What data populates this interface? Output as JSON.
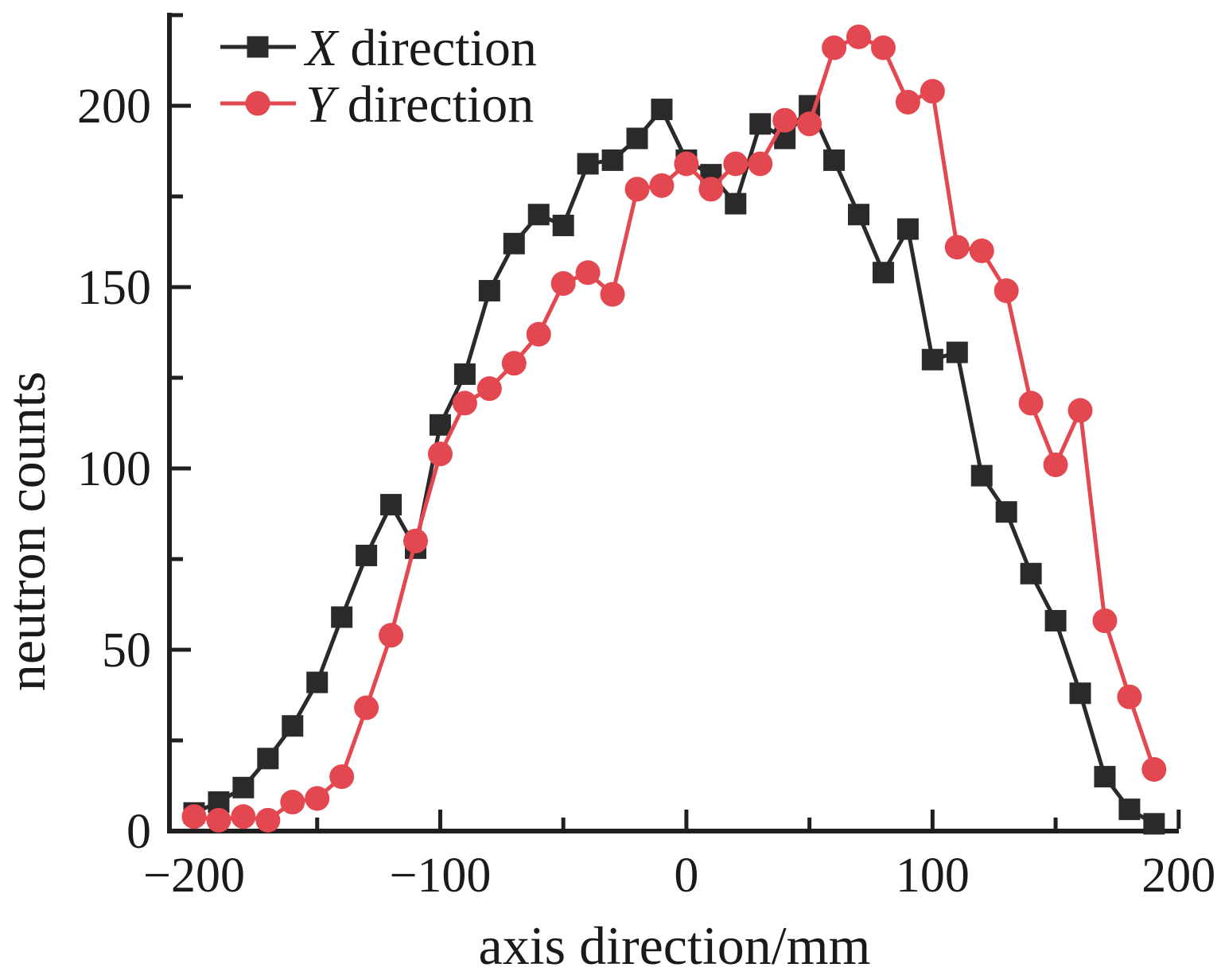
{
  "chart_data": {
    "type": "line",
    "title": "",
    "xlabel": "axis direction/mm",
    "ylabel": "neutron counts",
    "grid": false,
    "legend_position": "top-left-inside",
    "axis": {
      "xlim": [
        -210,
        200
      ],
      "ylim": [
        0,
        225
      ],
      "x_major_ticks": [
        -200,
        -100,
        0,
        100,
        200
      ],
      "x_major_tick_labels": [
        "−200",
        "−100",
        "0",
        "100",
        "200"
      ],
      "x_minor_ticks": [
        -150,
        -50,
        50,
        150
      ],
      "y_major_ticks": [
        0,
        50,
        100,
        150,
        200
      ],
      "y_major_tick_labels": [
        "0",
        "50",
        "100",
        "150",
        "200"
      ],
      "y_minor_ticks": [
        25,
        75,
        125,
        175,
        225
      ],
      "tick_direction": "in"
    },
    "x": [
      -200,
      -190,
      -180,
      -170,
      -160,
      -150,
      -140,
      -130,
      -120,
      -110,
      -100,
      -90,
      -80,
      -70,
      -60,
      -50,
      -40,
      -30,
      -20,
      -10,
      0,
      10,
      20,
      30,
      40,
      50,
      60,
      70,
      80,
      90,
      100,
      110,
      120,
      130,
      140,
      150,
      160,
      170,
      180,
      190
    ],
    "series": [
      {
        "name": "X direction",
        "legend_italic_part": "X",
        "legend_rest_part": "direction",
        "color": "#2a2a2a",
        "marker": "square",
        "values": [
          5,
          8,
          12,
          20,
          29,
          41,
          59,
          76,
          90,
          78,
          112,
          126,
          149,
          162,
          170,
          167,
          184,
          185,
          191,
          199,
          185,
          181,
          173,
          195,
          191,
          200,
          185,
          170,
          154,
          166,
          130,
          132,
          98,
          88,
          71,
          58,
          38,
          15,
          6,
          2
        ]
      },
      {
        "name": "Y direction",
        "legend_italic_part": "Y",
        "legend_rest_part": "direction",
        "color": "#e3474f",
        "marker": "circle",
        "values": [
          4,
          3,
          4,
          3,
          8,
          9,
          15,
          34,
          54,
          80,
          104,
          118,
          122,
          129,
          137,
          151,
          154,
          148,
          177,
          178,
          184,
          177,
          184,
          184,
          196,
          195,
          216,
          219,
          216,
          201,
          204,
          161,
          160,
          149,
          118,
          101,
          116,
          58,
          37,
          17
        ]
      }
    ],
    "colors": {
      "axis": "#1f1f1f",
      "x_series": "#2a2a2a",
      "y_series": "#e3474f",
      "background": "#ffffff"
    }
  }
}
